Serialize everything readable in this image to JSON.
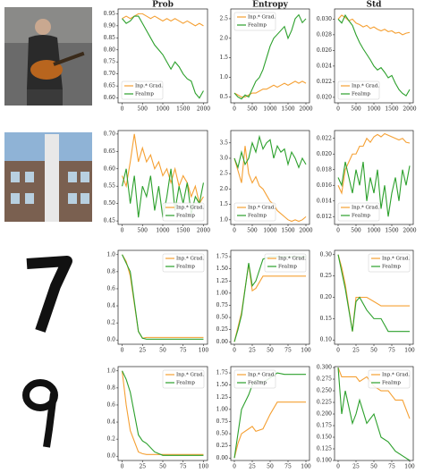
{
  "chart_data": [
    {
      "type": "line",
      "title": "Prob",
      "x": [
        0,
        100,
        200,
        300,
        400,
        500,
        600,
        700,
        800,
        900,
        1000,
        1100,
        1200,
        1300,
        1400,
        1500,
        1600,
        1700,
        1800,
        1900,
        2000
      ],
      "xlim": [
        -100,
        2100
      ],
      "xticks": [
        0,
        500,
        1000,
        1500,
        2000
      ],
      "ylim": [
        0.58,
        0.97
      ],
      "yticks": [
        {
          "value": 0.6,
          "label": "0.60"
        },
        0.65,
        {
          "value": 0.7,
          "label": "0.70"
        },
        0.75,
        {
          "value": 0.8,
          "label": "0.80"
        },
        0.85,
        {
          "value": 0.9,
          "label": "0.90"
        },
        0.95
      ],
      "legend": "lower left",
      "series": [
        {
          "name": "Inp.* Grad.",
          "color": "#f5a033",
          "values": [
            0.93,
            0.94,
            0.93,
            0.94,
            0.95,
            0.95,
            0.94,
            0.93,
            0.94,
            0.93,
            0.92,
            0.93,
            0.92,
            0.93,
            0.92,
            0.91,
            0.92,
            0.91,
            0.9,
            0.91,
            0.9
          ]
        },
        {
          "name": "FeaImp",
          "color": "#2ca02c",
          "values": [
            0.93,
            0.91,
            0.92,
            0.94,
            0.94,
            0.91,
            0.88,
            0.85,
            0.82,
            0.8,
            0.78,
            0.75,
            0.72,
            0.75,
            0.73,
            0.7,
            0.68,
            0.67,
            0.62,
            0.6,
            0.63
          ]
        }
      ]
    },
    {
      "type": "line",
      "title": "Entropy",
      "x": [
        0,
        100,
        200,
        300,
        400,
        500,
        600,
        700,
        800,
        900,
        1000,
        1100,
        1200,
        1300,
        1400,
        1500,
        1600,
        1700,
        1800,
        1900,
        2000
      ],
      "xlim": [
        -100,
        2100
      ],
      "xticks": [
        0,
        500,
        1000,
        1500,
        2000
      ],
      "ylim": [
        0.35,
        2.75
      ],
      "yticks": [
        0.5,
        {
          "value": 1,
          "label": "1.0"
        },
        1.5,
        {
          "value": 2,
          "label": "2.0"
        },
        2.5
      ],
      "legend": "upper left",
      "series": [
        {
          "name": "Inp.* Grad.",
          "color": "#f5a033",
          "values": [
            0.6,
            0.55,
            0.5,
            0.5,
            0.55,
            0.6,
            0.6,
            0.65,
            0.7,
            0.7,
            0.75,
            0.8,
            0.75,
            0.8,
            0.85,
            0.8,
            0.85,
            0.9,
            0.85,
            0.9,
            0.85
          ]
        },
        {
          "name": "FeaImp",
          "color": "#2ca02c",
          "values": [
            0.6,
            0.5,
            0.45,
            0.55,
            0.5,
            0.7,
            0.9,
            1.0,
            1.2,
            1.5,
            1.8,
            2.0,
            2.1,
            2.2,
            2.3,
            2.0,
            2.2,
            2.5,
            2.6,
            2.4,
            2.5
          ]
        }
      ]
    },
    {
      "type": "line",
      "title": "Std",
      "x": [
        0,
        100,
        200,
        300,
        400,
        500,
        600,
        700,
        800,
        900,
        1000,
        1100,
        1200,
        1300,
        1400,
        1500,
        1600,
        1700,
        1800,
        1900,
        2000
      ],
      "xlim": [
        -100,
        2100
      ],
      "xticks": [
        0,
        500,
        1000,
        1500,
        2000
      ],
      "ylim": [
        0.0193,
        0.0313
      ],
      "yticks": [
        {
          "value": 0.02,
          "label": "0.020"
        },
        0.022,
        0.024,
        0.026,
        0.028,
        {
          "value": 0.03,
          "label": "0.030"
        }
      ],
      "legend": "lower left",
      "series": [
        {
          "name": "Inp.* Grad.",
          "color": "#f5a033",
          "values": [
            0.03,
            0.0305,
            0.0302,
            0.0298,
            0.03,
            0.0295,
            0.0293,
            0.029,
            0.0292,
            0.0288,
            0.029,
            0.0287,
            0.0285,
            0.0287,
            0.0284,
            0.0285,
            0.0282,
            0.0283,
            0.028,
            0.0282,
            0.0283
          ]
        },
        {
          "name": "FeaImp",
          "color": "#2ca02c",
          "values": [
            0.03,
            0.0295,
            0.0305,
            0.0298,
            0.0292,
            0.028,
            0.027,
            0.0262,
            0.0255,
            0.0248,
            0.024,
            0.0235,
            0.0238,
            0.0232,
            0.0225,
            0.0228,
            0.0218,
            0.021,
            0.0205,
            0.0202,
            0.021
          ]
        }
      ]
    },
    {
      "type": "line",
      "x": [
        0,
        100,
        200,
        300,
        400,
        500,
        600,
        700,
        800,
        900,
        1000,
        1100,
        1200,
        1300,
        1400,
        1500,
        1600,
        1700,
        1800,
        1900,
        2000
      ],
      "xlim": [
        -100,
        2100
      ],
      "xticks": [
        0,
        500,
        1000,
        1500,
        2000
      ],
      "ylim": [
        0.44,
        0.71
      ],
      "yticks": [
        0.45,
        {
          "value": 0.5,
          "label": "0.50"
        },
        0.55,
        {
          "value": 0.6,
          "label": "0.60"
        },
        0.65,
        {
          "value": 0.7,
          "label": "0.70"
        }
      ],
      "legend": "lower right",
      "series": [
        {
          "name": "Inp.* Grad.",
          "color": "#f5a033",
          "values": [
            0.58,
            0.55,
            0.62,
            0.7,
            0.62,
            0.66,
            0.62,
            0.64,
            0.6,
            0.62,
            0.58,
            0.6,
            0.56,
            0.6,
            0.55,
            0.58,
            0.56,
            0.52,
            0.55,
            0.5,
            0.52
          ]
        },
        {
          "name": "FeaImp",
          "color": "#2ca02c",
          "values": [
            0.55,
            0.6,
            0.5,
            0.58,
            0.46,
            0.55,
            0.52,
            0.58,
            0.48,
            0.55,
            0.46,
            0.52,
            0.6,
            0.48,
            0.55,
            0.5,
            0.56,
            0.47,
            0.52,
            0.5,
            0.56
          ]
        }
      ]
    },
    {
      "type": "line",
      "x": [
        0,
        100,
        200,
        300,
        400,
        500,
        600,
        700,
        800,
        900,
        1000,
        1100,
        1200,
        1300,
        1400,
        1500,
        1600,
        1700,
        1800,
        1900,
        2000
      ],
      "xlim": [
        -100,
        2100
      ],
      "xticks": [
        0,
        500,
        1000,
        1500,
        2000
      ],
      "ylim": [
        0.85,
        3.9
      ],
      "yticks": [
        {
          "value": 1,
          "label": "1.0"
        },
        1.5,
        {
          "value": 2,
          "label": "2.0"
        },
        2.5,
        {
          "value": 3,
          "label": "3.0"
        },
        3.5
      ],
      "legend": "lower left",
      "series": [
        {
          "name": "Inp.* Grad.",
          "color": "#f5a033",
          "values": [
            3.0,
            2.6,
            2.2,
            3.4,
            2.5,
            2.2,
            2.4,
            2.1,
            2.0,
            1.8,
            1.6,
            1.5,
            1.3,
            1.2,
            1.1,
            1.0,
            0.95,
            1.0,
            0.95,
            1.0,
            1.1
          ]
        },
        {
          "name": "FeaImp",
          "color": "#2ca02c",
          "values": [
            3.0,
            2.7,
            3.2,
            2.8,
            3.0,
            3.5,
            3.2,
            3.7,
            3.3,
            3.5,
            3.6,
            3.0,
            3.4,
            3.2,
            3.3,
            2.8,
            3.2,
            3.0,
            2.7,
            3.0,
            2.8
          ]
        }
      ]
    },
    {
      "type": "line",
      "x": [
        0,
        100,
        200,
        300,
        400,
        500,
        600,
        700,
        800,
        900,
        1000,
        1100,
        1200,
        1300,
        1400,
        1500,
        1600,
        1700,
        1800,
        1900,
        2000
      ],
      "xlim": [
        -100,
        2100
      ],
      "xticks": [
        0,
        500,
        1000,
        1500,
        2000
      ],
      "ylim": [
        0.011,
        0.023
      ],
      "yticks": [
        0.012,
        0.014,
        0.016,
        0.018,
        {
          "value": 0.02,
          "label": "0.020"
        },
        0.022
      ],
      "legend": "lower left",
      "series": [
        {
          "name": "Inp.* Grad.",
          "color": "#f5a033",
          "values": [
            0.016,
            0.015,
            0.018,
            0.019,
            0.02,
            0.02,
            0.021,
            0.021,
            0.022,
            0.0215,
            0.0222,
            0.0225,
            0.0222,
            0.0226,
            0.0224,
            0.0222,
            0.022,
            0.0218,
            0.022,
            0.0215,
            0.0214
          ]
        },
        {
          "name": "FeaImp",
          "color": "#2ca02c",
          "values": [
            0.017,
            0.016,
            0.019,
            0.017,
            0.015,
            0.018,
            0.016,
            0.019,
            0.014,
            0.017,
            0.015,
            0.018,
            0.013,
            0.016,
            0.012,
            0.015,
            0.017,
            0.014,
            0.018,
            0.016,
            0.0185
          ]
        }
      ]
    },
    {
      "type": "line",
      "x": [
        0,
        5,
        10,
        20,
        25,
        30,
        40,
        50,
        60,
        70,
        80,
        90,
        100
      ],
      "xlim": [
        -5,
        105
      ],
      "xticks": [
        0,
        25,
        50,
        75,
        100
      ],
      "ylim": [
        -0.05,
        1.05
      ],
      "yticks": [
        {
          "value": 0,
          "label": "0.0"
        },
        0.2,
        0.4,
        0.6,
        0.8,
        {
          "value": 1,
          "label": "1.0"
        }
      ],
      "legend": "upper right",
      "series": [
        {
          "name": "Inp.* Grad.",
          "color": "#f5a033",
          "values": [
            1.0,
            0.92,
            0.75,
            0.1,
            0.02,
            0.03,
            0.03,
            0.03,
            0.03,
            0.03,
            0.03,
            0.03,
            0.03
          ]
        },
        {
          "name": "FeaImp",
          "color": "#2ca02c",
          "values": [
            1.0,
            0.9,
            0.8,
            0.1,
            0.02,
            0.01,
            0.01,
            0.01,
            0.01,
            0.01,
            0.01,
            0.01,
            0.01
          ]
        }
      ]
    },
    {
      "type": "line",
      "x": [
        0,
        5,
        10,
        20,
        25,
        30,
        40,
        50,
        60,
        70,
        80,
        90,
        100
      ],
      "xlim": [
        -5,
        105
      ],
      "xticks": [
        0,
        25,
        50,
        75,
        100
      ],
      "ylim": [
        -0.05,
        1.88
      ],
      "yticks": [
        {
          "value": 0,
          "label": "0.00"
        },
        0.25,
        {
          "value": 0.5,
          "label": "0.50"
        },
        0.75,
        {
          "value": 1,
          "label": "1.00"
        },
        1.25,
        {
          "value": 1.5,
          "label": "1.50"
        },
        1.75
      ],
      "legend": "upper right",
      "series": [
        {
          "name": "Inp.* Grad.",
          "color": "#f5a033",
          "values": [
            0.0,
            0.3,
            0.6,
            1.6,
            1.05,
            1.1,
            1.35,
            1.35,
            1.35,
            1.35,
            1.35,
            1.35,
            1.35
          ]
        },
        {
          "name": "FeaImp",
          "color": "#2ca02c",
          "values": [
            0.0,
            0.25,
            0.55,
            1.62,
            1.15,
            1.25,
            1.7,
            1.75,
            1.75,
            1.75,
            1.75,
            1.75,
            1.75
          ]
        }
      ]
    },
    {
      "type": "line",
      "x": [
        0,
        5,
        10,
        20,
        25,
        30,
        40,
        50,
        60,
        70,
        80,
        90,
        100
      ],
      "xlim": [
        -5,
        105
      ],
      "xticks": [
        0,
        25,
        50,
        75,
        100
      ],
      "ylim": [
        0.09,
        0.31
      ],
      "yticks": [
        {
          "value": 0.1,
          "label": "0.10"
        },
        0.15,
        {
          "value": 0.2,
          "label": "0.20"
        },
        0.25,
        {
          "value": 0.3,
          "label": "0.30"
        }
      ],
      "legend": "upper right",
      "series": [
        {
          "name": "Inp.* Grad.",
          "color": "#f5a033",
          "values": [
            0.3,
            0.27,
            0.23,
            0.12,
            0.2,
            0.2,
            0.2,
            0.19,
            0.18,
            0.18,
            0.18,
            0.18,
            0.18
          ]
        },
        {
          "name": "FeaImp",
          "color": "#2ca02c",
          "values": [
            0.3,
            0.26,
            0.22,
            0.12,
            0.19,
            0.2,
            0.17,
            0.15,
            0.15,
            0.12,
            0.12,
            0.12,
            0.12
          ]
        }
      ]
    },
    {
      "type": "line",
      "x": [
        0,
        5,
        10,
        20,
        25,
        30,
        40,
        50,
        60,
        70,
        80,
        90,
        100
      ],
      "xlim": [
        -5,
        105
      ],
      "xticks": [
        0,
        25,
        50,
        75,
        100
      ],
      "ylim": [
        -0.05,
        1.05
      ],
      "yticks": [
        {
          "value": 0,
          "label": "0.0"
        },
        0.2,
        0.4,
        0.6,
        0.8,
        {
          "value": 1,
          "label": "1.0"
        }
      ],
      "legend": "upper right",
      "series": [
        {
          "name": "Inp.* Grad.",
          "color": "#f5a033",
          "values": [
            1.0,
            0.6,
            0.3,
            0.05,
            0.03,
            0.02,
            0.02,
            0.02,
            0.02,
            0.02,
            0.02,
            0.02,
            0.02
          ]
        },
        {
          "name": "FeaImp",
          "color": "#2ca02c",
          "values": [
            1.0,
            0.9,
            0.75,
            0.25,
            0.18,
            0.15,
            0.05,
            0.01,
            0.01,
            0.01,
            0.01,
            0.01,
            0.01
          ]
        }
      ]
    },
    {
      "type": "line",
      "x": [
        0,
        5,
        10,
        20,
        25,
        30,
        40,
        50,
        60,
        70,
        80,
        90,
        100
      ],
      "xlim": [
        -5,
        105
      ],
      "xticks": [
        0,
        25,
        50,
        75,
        100
      ],
      "ylim": [
        -0.05,
        1.88
      ],
      "yticks": [
        {
          "value": 0,
          "label": "0.00"
        },
        0.25,
        {
          "value": 0.5,
          "label": "0.50"
        },
        0.75,
        {
          "value": 1,
          "label": "1.00"
        },
        1.25,
        {
          "value": 1.5,
          "label": "1.50"
        },
        1.75
      ],
      "legend": "upper left",
      "series": [
        {
          "name": "Inp.* Grad.",
          "color": "#f5a033",
          "values": [
            0.0,
            0.3,
            0.5,
            0.6,
            0.65,
            0.55,
            0.6,
            0.9,
            1.15,
            1.15,
            1.15,
            1.15,
            1.15
          ]
        },
        {
          "name": "FeaImp",
          "color": "#2ca02c",
          "values": [
            0.0,
            0.5,
            1.0,
            1.3,
            1.5,
            1.6,
            1.55,
            1.65,
            1.75,
            1.72,
            1.72,
            1.72,
            1.72
          ]
        }
      ]
    },
    {
      "type": "line",
      "x": [
        0,
        5,
        10,
        20,
        25,
        30,
        40,
        50,
        60,
        70,
        80,
        90,
        100
      ],
      "xlim": [
        -5,
        105
      ],
      "xticks": [
        0,
        25,
        50,
        75,
        100
      ],
      "ylim": [
        0.1,
        0.302
      ],
      "yticks": [
        {
          "value": 0.1,
          "label": "0.100"
        },
        0.125,
        {
          "value": 0.15,
          "label": "0.150"
        },
        0.175,
        {
          "value": 0.2,
          "label": "0.200"
        },
        0.225,
        {
          "value": 0.25,
          "label": "0.250"
        },
        0.275,
        {
          "value": 0.3,
          "label": "0.300"
        }
      ],
      "legend": "upper right",
      "series": [
        {
          "name": "Inp.* Grad.",
          "color": "#f5a033",
          "values": [
            0.3,
            0.28,
            0.28,
            0.28,
            0.28,
            0.27,
            0.28,
            0.26,
            0.25,
            0.25,
            0.23,
            0.23,
            0.19
          ]
        },
        {
          "name": "FeaImp",
          "color": "#2ca02c",
          "values": [
            0.3,
            0.2,
            0.25,
            0.18,
            0.2,
            0.23,
            0.18,
            0.2,
            0.15,
            0.14,
            0.12,
            0.11,
            0.1
          ]
        }
      ]
    }
  ]
}
